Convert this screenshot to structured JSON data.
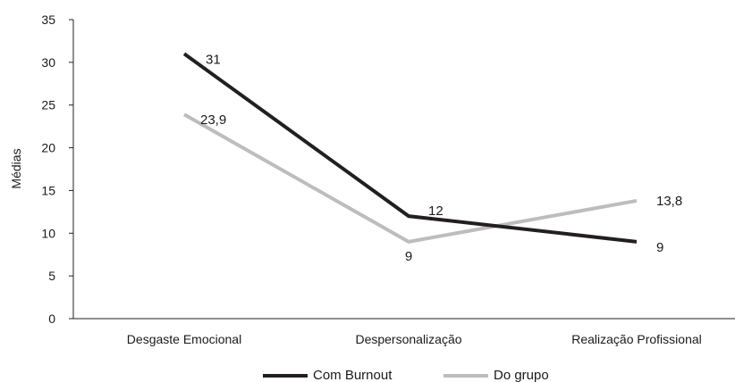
{
  "chart_data": {
    "type": "line",
    "categories": [
      "Desgaste Emocional",
      "Despersonalização",
      "Realização Profissional"
    ],
    "ylabel": "Médias",
    "xlabel": "",
    "ylim": [
      0,
      35
    ],
    "yticks": [
      0,
      5,
      10,
      15,
      20,
      25,
      30,
      35
    ],
    "grid": false,
    "legend_position": "bottom",
    "series": [
      {
        "name": "Com Burnout",
        "values": [
          31,
          12,
          9
        ],
        "labels": [
          "31",
          "12",
          "9"
        ],
        "color": "#231f20"
      },
      {
        "name": "Do grupo",
        "values": [
          23.9,
          9,
          13.8
        ],
        "labels": [
          "23,9",
          "9",
          "13,8"
        ],
        "color": "#bdbdbd"
      }
    ]
  }
}
